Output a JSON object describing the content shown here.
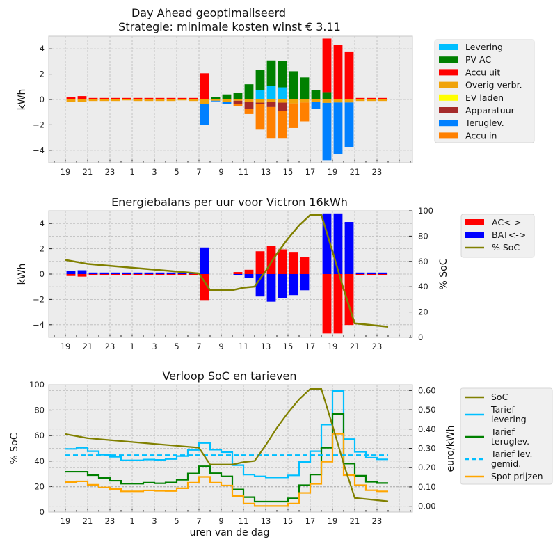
{
  "hours": [
    "19",
    "20",
    "21",
    "22",
    "23",
    "0",
    "1",
    "2",
    "3",
    "4",
    "5",
    "6",
    "7",
    "8",
    "9",
    "10",
    "11",
    "12",
    "13",
    "14",
    "15",
    "16",
    "17",
    "18",
    "19",
    "20",
    "21",
    "22",
    "23"
  ],
  "chart_data": [
    {
      "type": "bar",
      "stacked": true,
      "title": "Day Ahead geoptimaliseerd",
      "subtitle": "Strategie: minimale kosten winst € 3.11",
      "xlabel": "",
      "ylabel": "kWh",
      "ylim": [
        -5,
        5
      ],
      "yticks": [
        "4",
        "2",
        "0",
        "−2",
        "−4"
      ],
      "ytick_values": [
        4,
        2,
        0,
        -2,
        -4
      ],
      "xtick_labels": [
        "19",
        "21",
        "23",
        "1",
        "3",
        "5",
        "7",
        "9",
        "11",
        "13",
        "15",
        "17",
        "19",
        "21",
        "23"
      ],
      "grid": true,
      "legend_position": "right",
      "legend": [
        {
          "name": "Levering",
          "color": "#00bfff"
        },
        {
          "name": "PV AC",
          "color": "#008000"
        },
        {
          "name": "Accu uit",
          "color": "#ff0000"
        },
        {
          "name": "Overig verbr.",
          "color": "#f0a30a"
        },
        {
          "name": "EV laden",
          "color": "#ffff00"
        },
        {
          "name": "Apparatuur",
          "color": "#a52a2a"
        },
        {
          "name": "Teruglev.",
          "color": "#0080ff"
        },
        {
          "name": "Accu in",
          "color": "#ff8000"
        }
      ],
      "positive_series": [
        {
          "name": "Levering",
          "color": "#00bfff",
          "values": [
            0,
            0,
            0,
            0,
            0,
            0,
            0,
            0,
            0,
            0,
            0,
            0,
            0,
            0,
            0,
            0,
            0,
            0.76,
            1.05,
            0.96,
            0,
            0,
            0,
            0,
            0,
            0,
            0,
            0,
            0
          ]
        },
        {
          "name": "PV AC",
          "color": "#008000",
          "values": [
            0,
            0,
            0,
            0,
            0,
            0,
            0,
            0,
            0,
            0,
            0,
            0,
            0.04,
            0.2,
            0.4,
            0.55,
            1.2,
            1.6,
            2.04,
            2.11,
            2.23,
            1.74,
            0.76,
            0.58,
            0.05,
            0,
            0,
            0,
            0
          ]
        },
        {
          "name": "Accu uit",
          "color": "#ff0000",
          "values": [
            0.22,
            0.27,
            0.12,
            0.12,
            0.12,
            0.12,
            0.12,
            0.12,
            0.12,
            0.12,
            0.12,
            0.12,
            2.03,
            0,
            0,
            0,
            0,
            0,
            0,
            0,
            0,
            0,
            0,
            4.23,
            4.26,
            3.74,
            0.12,
            0.12,
            0.12
          ]
        }
      ],
      "negative_series": [
        {
          "name": "Overig verbr.",
          "color": "#f0a30a",
          "values": [
            0.22,
            0.22,
            0.12,
            0.12,
            0.12,
            0.07,
            0.12,
            0.12,
            0.12,
            0.12,
            0.07,
            0.12,
            0.33,
            0.1,
            0.2,
            0.1,
            0.2,
            0.25,
            0.22,
            0.25,
            0.31,
            0.24,
            0.22,
            0.27,
            0.24,
            0.24,
            0.12,
            0.12,
            0.12
          ]
        },
        {
          "name": "EV laden",
          "color": "#ffff00",
          "values": [
            0,
            0,
            0,
            0,
            0,
            0,
            0,
            0,
            0,
            0,
            0,
            0,
            0,
            0,
            0,
            0,
            0,
            0,
            0,
            0,
            0,
            0,
            0,
            0,
            0,
            0,
            0,
            0,
            0
          ]
        },
        {
          "name": "Apparatuur",
          "color": "#a52a2a",
          "values": [
            0,
            0,
            0,
            0,
            0,
            0,
            0,
            0,
            0,
            0,
            0,
            0,
            0,
            0,
            0,
            0.25,
            0.55,
            0.13,
            0.38,
            0.68,
            0,
            0,
            0,
            0,
            0,
            0,
            0,
            0,
            0
          ]
        },
        {
          "name": "Teruglev.",
          "color": "#0080ff",
          "values": [
            0,
            0,
            0,
            0,
            0,
            0,
            0,
            0,
            0,
            0,
            0,
            0,
            1.67,
            0.05,
            0.15,
            0,
            0,
            0,
            0,
            0,
            0,
            0,
            0.51,
            4.53,
            4.05,
            3.52,
            0,
            0,
            0
          ]
        },
        {
          "name": "Accu in",
          "color": "#ff8000",
          "values": [
            0,
            0,
            0,
            0,
            0,
            0,
            0,
            0,
            0,
            0,
            0,
            0,
            0,
            0,
            0,
            0.2,
            0.4,
            2.0,
            2.49,
            2.16,
            1.94,
            1.49,
            0,
            0,
            0,
            0,
            0,
            0,
            0
          ]
        }
      ]
    },
    {
      "type": "bar",
      "title": "Energiebalans per uur voor Victron 16kWh",
      "xlabel": "",
      "ylabel": "kWh",
      "ylabel_right": "% SoC",
      "ylim": [
        -5,
        5
      ],
      "ylim_right": [
        0,
        100
      ],
      "yticks": [
        "4",
        "2",
        "0",
        "−2",
        "−4"
      ],
      "ytick_values": [
        4,
        2,
        0,
        -2,
        -4
      ],
      "yticks_right": [
        "100",
        "80",
        "60",
        "40",
        "20",
        "0"
      ],
      "ytick_right_values": [
        100,
        80,
        60,
        40,
        20,
        0
      ],
      "xtick_labels": [
        "19",
        "21",
        "23",
        "1",
        "3",
        "5",
        "7",
        "9",
        "11",
        "13",
        "15",
        "17",
        "19",
        "21",
        "23"
      ],
      "grid": true,
      "legend_position": "right",
      "legend": [
        {
          "name": "AC<->",
          "color": "#ff0000",
          "kind": "bar"
        },
        {
          "name": "BAT<->",
          "color": "#0000ff",
          "kind": "bar"
        },
        {
          "name": "% SoC",
          "color": "#808000",
          "kind": "line"
        }
      ],
      "series": [
        {
          "name": "AC<->",
          "color": "#ff0000",
          "values": [
            -0.15,
            -0.2,
            -0.06,
            -0.06,
            -0.06,
            -0.06,
            -0.06,
            -0.06,
            -0.06,
            -0.06,
            -0.06,
            -0.06,
            -2.05,
            0,
            0,
            0.16,
            0.34,
            1.8,
            2.25,
            1.95,
            1.75,
            1.37,
            0,
            -4.69,
            -4.69,
            -4.02,
            -0.06,
            -0.06,
            -0.06
          ]
        },
        {
          "name": "BAT<->",
          "color": "#0000ff",
          "values": [
            0.25,
            0.3,
            0.12,
            0.12,
            0.12,
            0.12,
            0.12,
            0.12,
            0.12,
            0.12,
            0.12,
            0.12,
            2.1,
            0,
            0,
            -0.11,
            -0.29,
            -1.77,
            -2.18,
            -1.91,
            -1.66,
            -1.28,
            0,
            4.79,
            4.79,
            4.12,
            0.12,
            0.12,
            0.12
          ]
        }
      ],
      "soc_line": {
        "name": "% SoC",
        "color": "#808000",
        "x": [
          0,
          2,
          4,
          6,
          8,
          10,
          12,
          13,
          14,
          15,
          16,
          17,
          18,
          19,
          20,
          21,
          22,
          23,
          24,
          25,
          26,
          29
        ],
        "values": [
          61.2,
          58,
          56.5,
          55,
          53.5,
          52,
          50.5,
          37.3,
          37.3,
          37.3,
          39.2,
          40.1,
          52.5,
          66.1,
          78,
          88.5,
          96.7,
          96.7,
          68,
          38,
          11.1,
          8.4
        ]
      }
    },
    {
      "type": "line",
      "title": "Verloop SoC en tarieven",
      "xlabel": "uren van de dag",
      "ylabel": "% SoC",
      "ylabel_right": "euro/kWh",
      "ylim": [
        0,
        100
      ],
      "ylim_right": [
        -0.03,
        0.63
      ],
      "yticks": [
        "100",
        "80",
        "60",
        "40",
        "20",
        "0"
      ],
      "ytick_values": [
        100,
        80,
        60,
        40,
        20,
        0
      ],
      "yticks_right": [
        "0.60",
        "0.50",
        "0.40",
        "0.30",
        "0.20",
        "0.10",
        "0.00"
      ],
      "ytick_right_values": [
        0.6,
        0.5,
        0.4,
        0.3,
        0.2,
        0.1,
        0.0
      ],
      "xtick_labels": [
        "19",
        "21",
        "23",
        "1",
        "3",
        "5",
        "7",
        "9",
        "11",
        "13",
        "15",
        "17",
        "19",
        "21",
        "23"
      ],
      "grid": true,
      "legend_position": "right",
      "legend": [
        {
          "name": "SoC",
          "color": "#808000",
          "style": "solid"
        },
        {
          "name": "Tarief\nlevering",
          "color": "#00bfff",
          "style": "solid"
        },
        {
          "name": "Tarief\nteruglev.",
          "color": "#008000",
          "style": "solid"
        },
        {
          "name": "Tarief lev.\ngemid.",
          "color": "#00bfff",
          "style": "dashed"
        },
        {
          "name": "Spot prijzen",
          "color": "#ffa500",
          "style": "solid"
        }
      ],
      "soc": {
        "name": "SoC",
        "color": "#808000",
        "x": [
          0,
          2,
          4,
          6,
          8,
          10,
          12,
          13,
          14,
          15,
          16,
          17,
          18,
          19,
          20,
          21,
          22,
          23,
          24,
          25,
          26,
          29
        ],
        "values": [
          61.2,
          58,
          56.5,
          55,
          53.5,
          52,
          50.5,
          37.3,
          37.3,
          37.3,
          39.2,
          40.1,
          52.5,
          66.1,
          78,
          88.5,
          96.7,
          96.7,
          68,
          38,
          11.1,
          8.4
        ]
      },
      "tarief_levering": {
        "name": "Tarief levering",
        "color": "#00bfff",
        "values": [
          0.297,
          0.303,
          0.285,
          0.267,
          0.256,
          0.238,
          0.238,
          0.242,
          0.24,
          0.245,
          0.26,
          0.292,
          0.328,
          0.293,
          0.28,
          0.213,
          0.164,
          0.155,
          0.149,
          0.149,
          0.16,
          0.23,
          0.285,
          0.423,
          0.598,
          0.348,
          0.282,
          0.252,
          0.243
        ]
      },
      "tarief_teruglev": {
        "name": "Tarief teruglev.",
        "color": "#008000",
        "values": [
          0.179,
          0.179,
          0.161,
          0.147,
          0.132,
          0.117,
          0.117,
          0.122,
          0.119,
          0.123,
          0.137,
          0.17,
          0.207,
          0.171,
          0.155,
          0.087,
          0.047,
          0.024,
          0.024,
          0.024,
          0.041,
          0.109,
          0.164,
          0.303,
          0.478,
          0.221,
          0.158,
          0.127,
          0.12
        ]
      },
      "spot_prijzen": {
        "name": "Spot prijzen",
        "color": "#ffa500",
        "values": [
          0.125,
          0.129,
          0.111,
          0.097,
          0.089,
          0.077,
          0.077,
          0.082,
          0.08,
          0.079,
          0.093,
          0.122,
          0.152,
          0.122,
          0.107,
          0.053,
          0.014,
          0.001,
          0.001,
          0.001,
          0.014,
          0.069,
          0.116,
          0.231,
          0.375,
          0.161,
          0.109,
          0.083,
          0.077
        ]
      },
      "tarief_gemiddeld": {
        "name": "Tarief lev. gemid.",
        "color": "#00bfff",
        "value": 0.265
      }
    }
  ]
}
